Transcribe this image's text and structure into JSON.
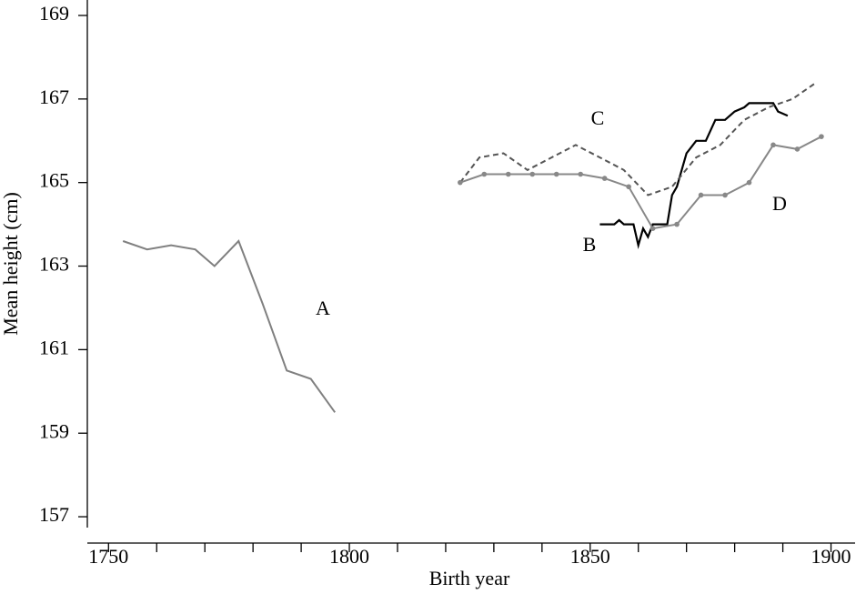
{
  "chart_data": {
    "type": "line",
    "x_label": "Birth year",
    "y_label": "Mean height (cm)",
    "xlim": [
      1745.6,
      1905
    ],
    "ylim": [
      156.74,
      169.37
    ],
    "xticks": [
      1750,
      1800,
      1850,
      1900
    ],
    "xminorticks": [
      1760,
      1770,
      1780,
      1790,
      1810,
      1820,
      1830,
      1840,
      1860,
      1870,
      1880,
      1890
    ],
    "yticks": [
      157,
      159,
      161,
      163,
      165,
      167,
      169
    ],
    "series": [
      {
        "name": "A",
        "color": "#808080",
        "style": "solid",
        "markers": false,
        "x": [
          1753,
          1758,
          1763,
          1768,
          1772,
          1777,
          1782,
          1787,
          1792,
          1797
        ],
        "values": [
          163.6,
          163.4,
          163.5,
          163.4,
          163.0,
          163.6,
          162.1,
          160.5,
          160.3,
          159.5
        ]
      },
      {
        "name": "B",
        "color": "#000000",
        "style": "solid",
        "markers": false,
        "x": [
          1852,
          1855,
          1856,
          1857,
          1859,
          1860,
          1861,
          1862,
          1863,
          1866,
          1867,
          1868,
          1869,
          1870,
          1872,
          1874,
          1876,
          1878,
          1880,
          1882,
          1883,
          1888,
          1889,
          1891
        ],
        "values": [
          164.0,
          164.0,
          164.1,
          164.0,
          164.0,
          163.5,
          163.9,
          163.7,
          164.0,
          164.0,
          164.7,
          164.9,
          165.3,
          165.7,
          166.0,
          166.0,
          166.5,
          166.5,
          166.7,
          166.8,
          166.9,
          166.9,
          166.7,
          166.6
        ]
      },
      {
        "name": "C",
        "color": "#555555",
        "style": "dashed",
        "markers": false,
        "x": [
          1823,
          1827,
          1832,
          1837,
          1842,
          1847,
          1852,
          1857,
          1862,
          1867,
          1872,
          1877,
          1882,
          1887,
          1892,
          1897
        ],
        "values": [
          165.0,
          165.6,
          165.7,
          165.3,
          165.6,
          165.9,
          165.6,
          165.3,
          164.7,
          164.9,
          165.6,
          165.9,
          166.5,
          166.8,
          167.0,
          167.4
        ]
      },
      {
        "name": "D",
        "color": "#888888",
        "style": "solid",
        "markers": true,
        "x": [
          1823,
          1828,
          1833,
          1838,
          1843,
          1848,
          1853,
          1858,
          1863,
          1868,
          1873,
          1878,
          1883,
          1888,
          1893,
          1898
        ],
        "values": [
          165.0,
          165.2,
          165.2,
          165.2,
          165.2,
          165.2,
          165.1,
          164.9,
          163.9,
          164.0,
          164.7,
          164.7,
          165.0,
          165.9,
          165.8,
          166.1
        ]
      }
    ]
  }
}
